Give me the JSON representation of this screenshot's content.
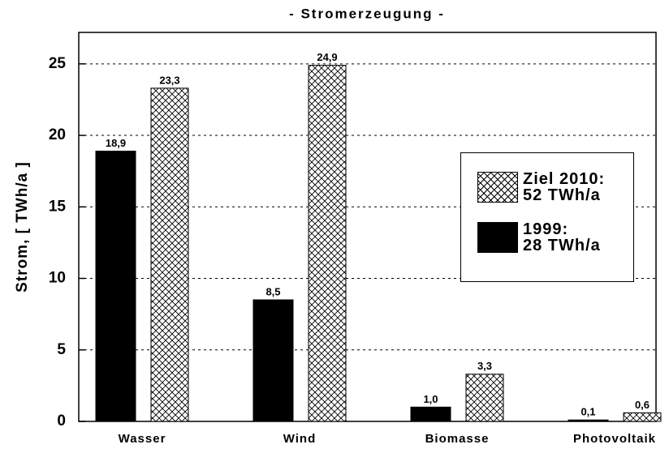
{
  "chart_data": {
    "type": "bar",
    "title": "- Stromerzeugung -",
    "y_label": "Strom, [ TWh/a ]",
    "categories": [
      "Wasser",
      "Wind",
      "Biomasse",
      "Photovoltaik"
    ],
    "series": [
      {
        "name": "1999:\n28 TWh/a",
        "color": "#000000",
        "values": [
          18.9,
          8.5,
          1.0,
          0.1
        ],
        "value_labels": [
          "18,9",
          "8,5",
          "1,0",
          "0,1"
        ]
      },
      {
        "name": "Ziel 2010:\n52 TWh/a",
        "color": "crosshatch",
        "values": [
          23.3,
          24.9,
          3.3,
          0.6
        ],
        "value_labels": [
          "23,3",
          "24,9",
          "3,3",
          "0,6"
        ]
      }
    ],
    "ylim": [
      0,
      27.2
    ],
    "yticks": [
      0,
      5,
      10,
      15,
      20,
      25
    ],
    "grid": true,
    "legend": "right"
  }
}
